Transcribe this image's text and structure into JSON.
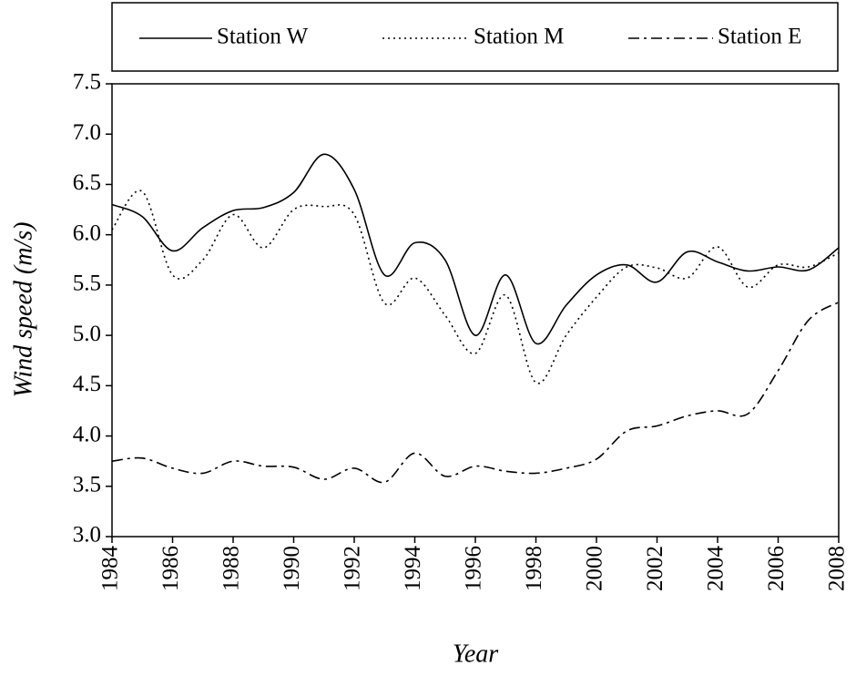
{
  "chart_data": {
    "type": "line",
    "xlabel": "Year",
    "ylabel": "Wind speed (m/s)",
    "x": [
      1984,
      1985,
      1986,
      1987,
      1988,
      1989,
      1990,
      1991,
      1992,
      1993,
      1994,
      1995,
      1996,
      1997,
      1998,
      1999,
      2000,
      2001,
      2002,
      2003,
      2004,
      2005,
      2006,
      2007,
      2008
    ],
    "series": [
      {
        "name": "Station W",
        "color": "#000000",
        "dash": "solid",
        "values": [
          6.3,
          6.18,
          5.84,
          6.07,
          6.24,
          6.27,
          6.42,
          6.8,
          6.45,
          5.6,
          5.92,
          5.75,
          5.0,
          5.6,
          4.92,
          5.3,
          5.6,
          5.7,
          5.53,
          5.83,
          5.73,
          5.64,
          5.68,
          5.65,
          5.87
        ]
      },
      {
        "name": "Station M",
        "color": "#000000",
        "dash": "dotted",
        "values": [
          6.05,
          6.43,
          5.6,
          5.75,
          6.2,
          5.87,
          6.25,
          6.28,
          6.2,
          5.32,
          5.57,
          5.2,
          4.82,
          5.4,
          4.53,
          5.0,
          5.38,
          5.68,
          5.67,
          5.57,
          5.88,
          5.48,
          5.7,
          5.68,
          5.82
        ]
      },
      {
        "name": "Station E",
        "color": "#000000",
        "dash": "dashdot",
        "values": [
          3.75,
          3.78,
          3.68,
          3.63,
          3.75,
          3.7,
          3.69,
          3.57,
          3.68,
          3.54,
          3.83,
          3.6,
          3.7,
          3.65,
          3.63,
          3.68,
          3.77,
          4.05,
          4.1,
          4.2,
          4.25,
          4.22,
          4.65,
          5.15,
          5.33
        ]
      }
    ],
    "xlim": [
      1984,
      2008
    ],
    "xticks": [
      1984,
      1986,
      1988,
      1990,
      1992,
      1994,
      1996,
      1998,
      2000,
      2002,
      2004,
      2006,
      2008
    ],
    "ylim": [
      3.0,
      7.5
    ],
    "yticks": [
      {
        "value": 3.0,
        "label": "3.0"
      },
      3.5,
      {
        "value": 4.0,
        "label": "4.0"
      },
      4.5,
      {
        "value": 5.0,
        "label": "5.0"
      },
      5.5,
      {
        "value": 6.0,
        "label": "6.0"
      },
      6.5,
      {
        "value": 7.0,
        "label": "7.0"
      },
      7.5
    ],
    "grid": false,
    "legend": "top"
  }
}
